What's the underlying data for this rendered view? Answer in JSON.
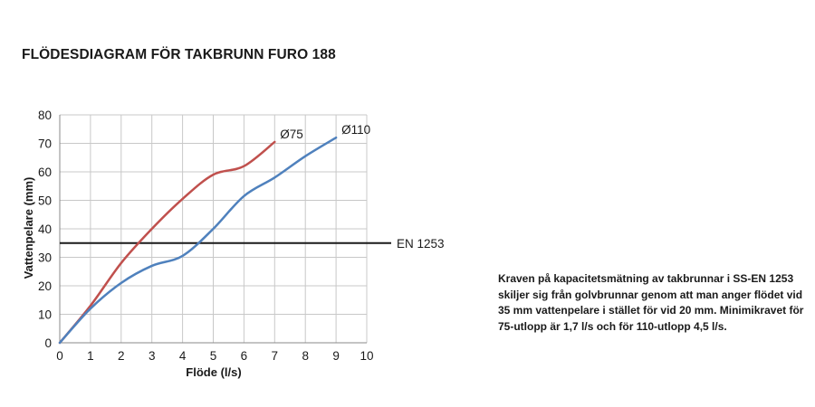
{
  "chart_data": {
    "type": "line",
    "title": "FLÖDESDIAGRAM FÖR TAKBRUNN FURO 188",
    "xlabel": "Flöde (l/s)",
    "ylabel": "Vattenpelare (mm)",
    "xlim": [
      0,
      10
    ],
    "ylim": [
      0,
      80
    ],
    "x_ticks": [
      "0",
      "1",
      "2",
      "3",
      "4",
      "5",
      "6",
      "7",
      "8",
      "9",
      "10"
    ],
    "y_ticks": [
      "0",
      "10",
      "20",
      "30",
      "40",
      "50",
      "60",
      "70",
      "80"
    ],
    "grid": true,
    "series": [
      {
        "name": "Ø75",
        "color": "#c0504d",
        "points": [
          [
            0,
            0
          ],
          [
            1,
            13
          ],
          [
            2,
            28
          ],
          [
            3,
            40
          ],
          [
            4,
            50.5
          ],
          [
            5,
            59
          ],
          [
            6,
            62
          ],
          [
            7,
            70.5
          ]
        ]
      },
      {
        "name": "Ø110",
        "color": "#4f81bd",
        "points": [
          [
            0,
            0
          ],
          [
            1,
            12
          ],
          [
            2,
            21
          ],
          [
            3,
            27
          ],
          [
            4,
            30.5
          ],
          [
            5,
            40
          ],
          [
            6,
            51.5
          ],
          [
            7,
            58
          ],
          [
            8,
            65.5
          ],
          [
            9,
            72
          ]
        ]
      }
    ],
    "reference_lines": [
      {
        "label": "EN 1253",
        "y": 35,
        "color": "#1a1a1a"
      }
    ]
  },
  "note": "Kraven på kapacitetsmätning av takbrunnar i SS-EN 1253 skiljer sig från golvbrunnar genom att man anger flödet vid 35 mm vattenpelare i stället för vid 20 mm. Minimikravet för 75-utlopp är 1,7 l/s och för 110-utlopp 4,5 l/s."
}
